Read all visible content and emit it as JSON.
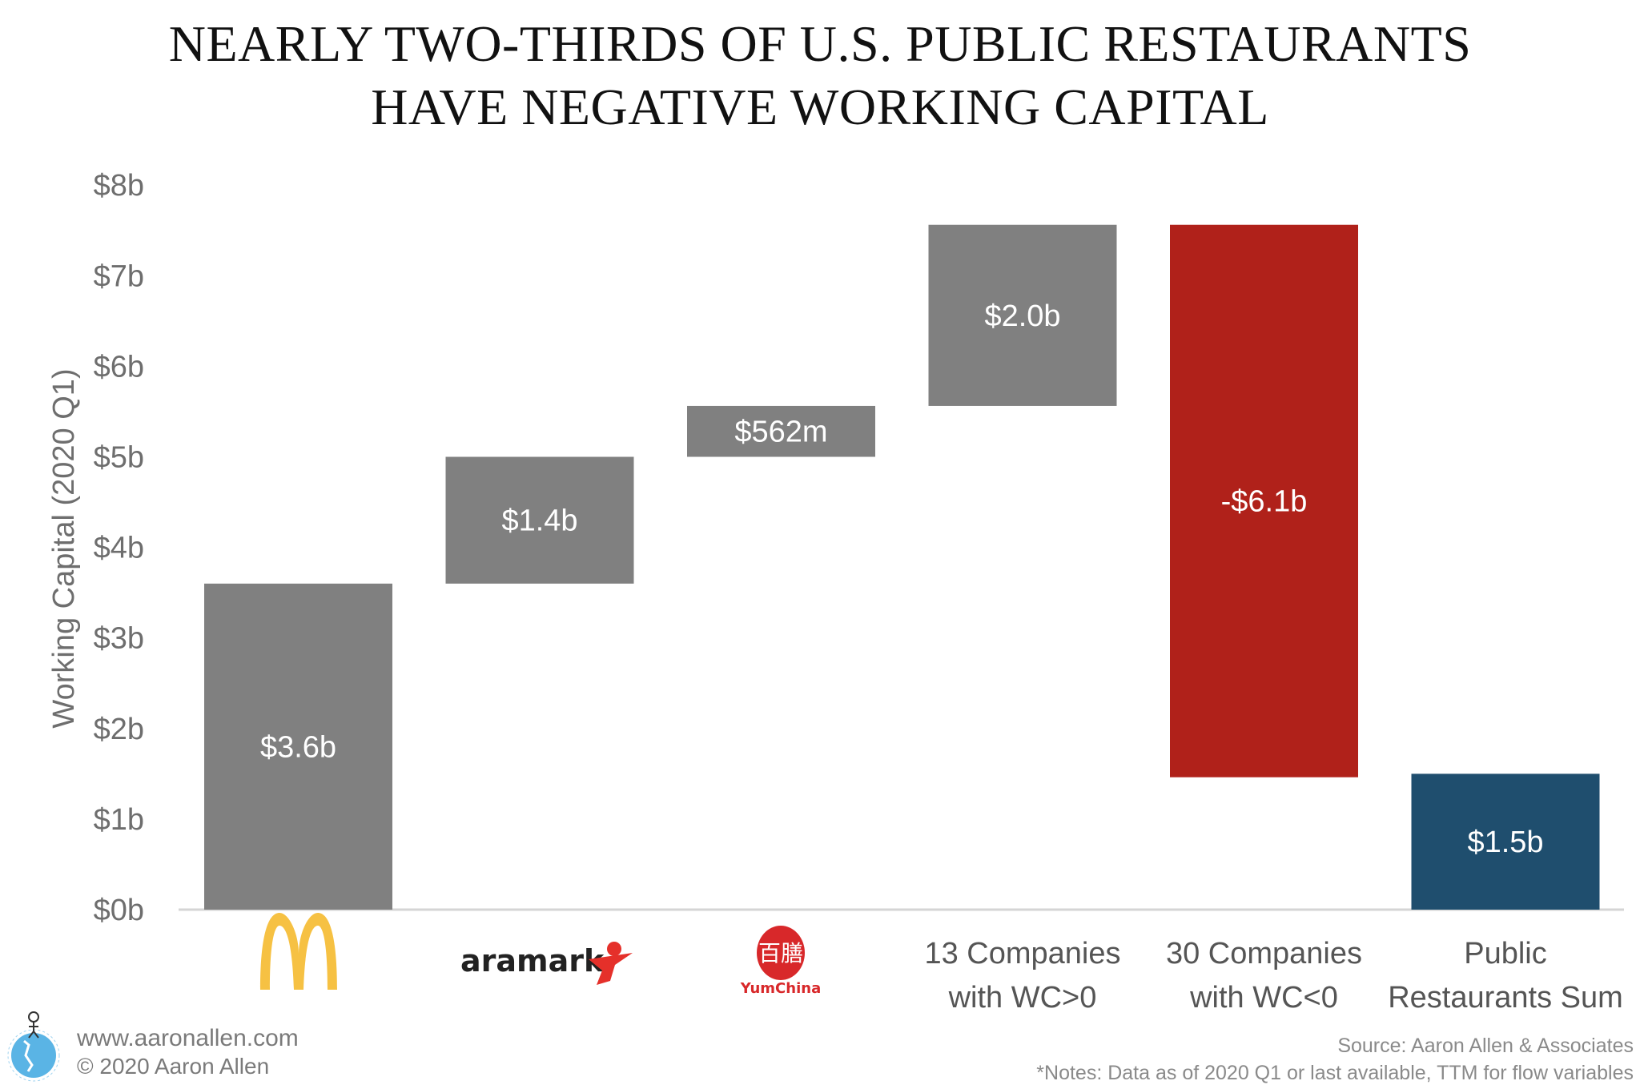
{
  "chart_data": {
    "type": "waterfall",
    "title": [
      "NEARLY TWO-THIRDS OF U.S. PUBLIC RESTAURANTS",
      "HAVE NEGATIVE WORKING CAPITAL"
    ],
    "ylabel": "Working Capital (2020 Q1)",
    "ylim": [
      0,
      8
    ],
    "yticks": [
      "$0b",
      "$1b",
      "$2b",
      "$3b",
      "$4b",
      "$5b",
      "$6b",
      "$7b",
      "$8b"
    ],
    "grid": false,
    "bars": [
      {
        "category": "McDonald's",
        "logo": "mcdonalds-logo",
        "value": 3.6,
        "kind": "increase",
        "label": "$3.6b",
        "color": "#808080"
      },
      {
        "category": "aramark",
        "logo": "aramark-logo",
        "value": 1.4,
        "kind": "increase",
        "label": "$1.4b",
        "color": "#808080"
      },
      {
        "category": "YumChina",
        "logo": "yumchina-logo",
        "value": 0.562,
        "kind": "increase",
        "label": "$562m",
        "color": "#808080"
      },
      {
        "category": [
          "13 Companies",
          "with WC>0"
        ],
        "value": 2.0,
        "kind": "increase",
        "label": "$2.0b",
        "color": "#808080"
      },
      {
        "category": [
          "30 Companies",
          "with WC<0"
        ],
        "value": -6.1,
        "kind": "decrease",
        "label": "-$6.1b",
        "color": "#b0211a"
      },
      {
        "category": [
          "Public",
          "Restaurants Sum"
        ],
        "value": 1.5,
        "kind": "total",
        "label": "$1.5b",
        "color": "#1f4e6e"
      }
    ]
  },
  "footer": {
    "website": "www.aaronallen.com",
    "copyright": "© 2020 Aaron Allen",
    "source": "Source: Aaron Allen & Associates",
    "notes": "*Notes: Data as of 2020 Q1 or last available, TTM for flow variables"
  }
}
